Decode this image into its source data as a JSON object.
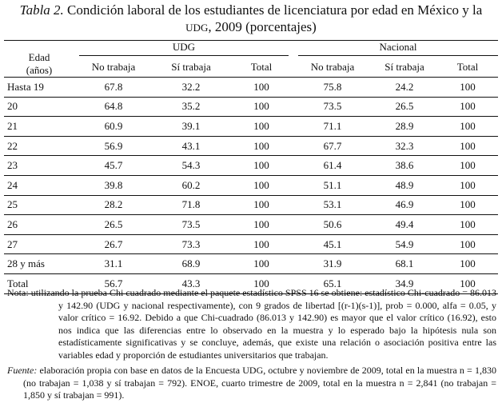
{
  "title": {
    "lead": "Tabla 2.",
    "text_part1": " Condición laboral de los estudiantes de licenciatura por edad en México y la ",
    "udg": "UDG",
    "text_part2": ", 2009 (porcentajes)"
  },
  "table": {
    "age_header_line1": "Edad",
    "age_header_line2": "(años)",
    "group_udg": "UDG",
    "group_nacional": "Nacional",
    "subheaders": [
      "No trabaja",
      "Sí trabaja",
      "Total",
      "No trabaja",
      "Sí trabaja",
      "Total"
    ],
    "rows": [
      [
        "Hasta 19",
        "67.8",
        "32.2",
        "100",
        "75.8",
        "24.2",
        "100"
      ],
      [
        "20",
        "64.8",
        "35.2",
        "100",
        "73.5",
        "26.5",
        "100"
      ],
      [
        "21",
        "60.9",
        "39.1",
        "100",
        "71.1",
        "28.9",
        "100"
      ],
      [
        "22",
        "56.9",
        "43.1",
        "100",
        "67.7",
        "32.3",
        "100"
      ],
      [
        "23",
        "45.7",
        "54.3",
        "100",
        "61.4",
        "38.6",
        "100"
      ],
      [
        "24",
        "39.8",
        "60.2",
        "100",
        "51.1",
        "48.9",
        "100"
      ],
      [
        "25",
        "28.2",
        "71.8",
        "100",
        "53.1",
        "46.9",
        "100"
      ],
      [
        "26",
        "26.5",
        "73.5",
        "100",
        "50.6",
        "49.4",
        "100"
      ],
      [
        "27",
        "26.7",
        "73.3",
        "100",
        "45.1",
        "54.9",
        "100"
      ],
      [
        "28 y más",
        "31.1",
        "68.9",
        "100",
        "31.9",
        "68.1",
        "100"
      ],
      [
        "Total",
        "56.7",
        "43.3",
        "100",
        "65.1",
        "34.9",
        "100"
      ]
    ]
  },
  "note": {
    "label": "Nota:",
    "text": "utilizando la prueba Chi cuadrado mediante el paquete estadístico SPSS 16 se obtiene: estadístico Chi-cuadrado = 86.013 y 142.90 (UDG y nacional respectivamente), con 9 grados de libertad [(r-1)(s-1)], prob = 0.000, alfa = 0.05, y valor crítico = 16.92. Debido a que Chi-cuadrado (86.013 y 142.90) es mayor que el valor crítico (16.92), esto nos indica que las diferencias entre lo observado en la muestra y lo esperado bajo la hipótesis nula son estadísticamente significativas y se concluye, además, que existe una relación o asociación positiva entre las variables edad y proporción de estudiantes universitarios que trabajan."
  },
  "source": {
    "label": "Fuente:",
    "text": "elaboración propia con base en datos de la Encuesta UDG, octubre y noviembre de 2009, total en la muestra n = 1,830 (no trabajan = 1,038 y sí trabajan = 792). ENOE, cuarto trimestre de 2009, total en la muestra n = 2,841 (no trabajan = 1,850 y sí trabajan = 991)."
  }
}
